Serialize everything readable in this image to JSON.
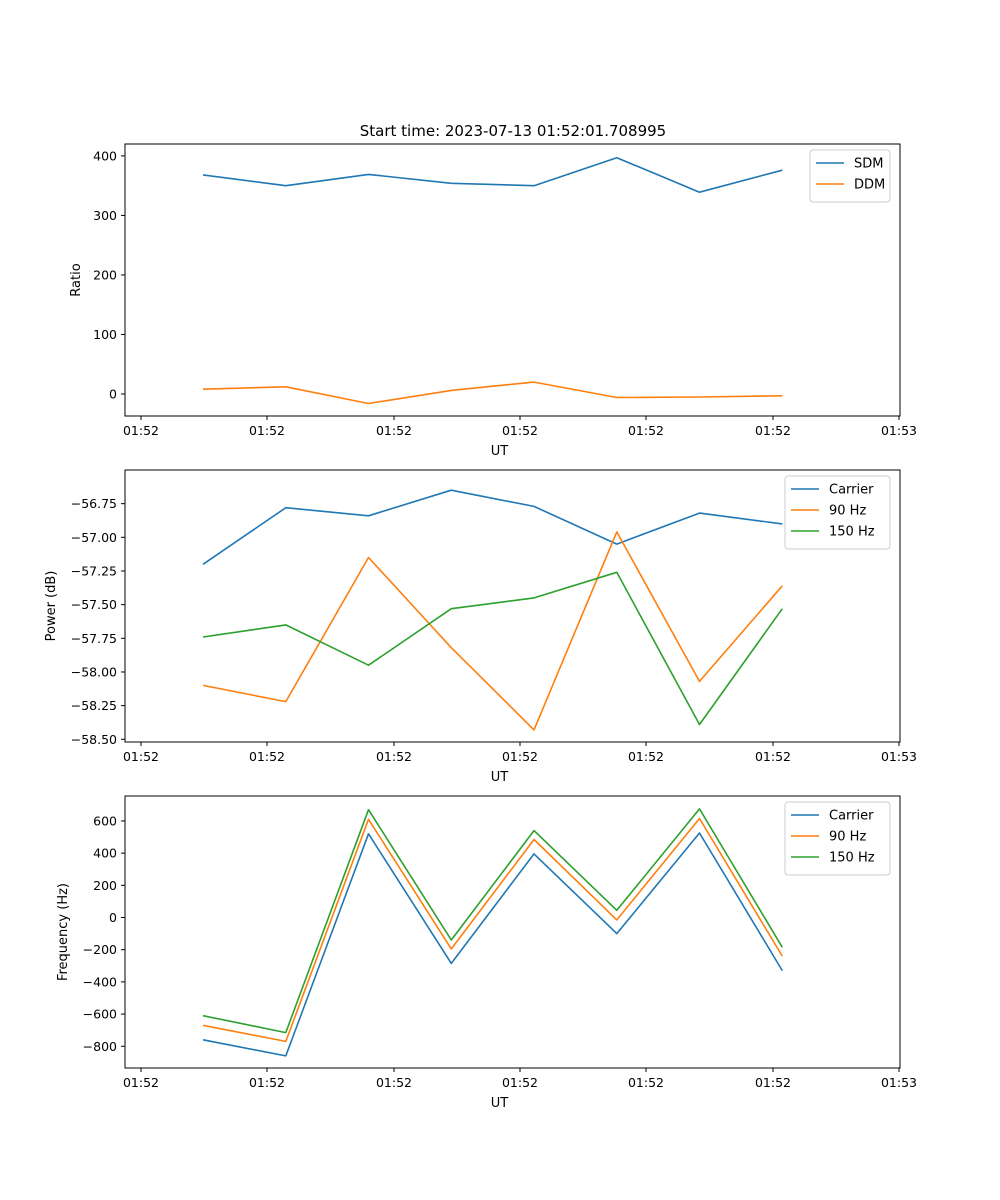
{
  "figure_title": "Start time: 2023-07-13 01:52:01.708995",
  "chart_data": [
    {
      "type": "line",
      "title": "Start time: 2023-07-13 01:52:01.708995",
      "xlabel": "UT",
      "ylabel": "Ratio",
      "x_ticks": [
        "01:52",
        "01:52",
        "01:52",
        "01:52",
        "01:52",
        "01:52",
        "01:53"
      ],
      "x": [
        1,
        2,
        3,
        4,
        5,
        6,
        7,
        8
      ],
      "xlim": [
        0.25,
        9.45
      ],
      "yticks": [
        0,
        100,
        200,
        300,
        400
      ],
      "ylim": [
        -37,
        420
      ],
      "legend": "top-right",
      "series": [
        {
          "name": "SDM",
          "color": "#1f77b4",
          "values": [
            368,
            350,
            369,
            354,
            350,
            397,
            339,
            376
          ]
        },
        {
          "name": "DDM",
          "color": "#ff7f0e",
          "values": [
            8,
            12,
            -16,
            6,
            20,
            -6,
            -5,
            -3
          ]
        }
      ]
    },
    {
      "type": "line",
      "title": "",
      "xlabel": "UT",
      "ylabel": "Power (dB)",
      "x_ticks": [
        "01:52",
        "01:52",
        "01:52",
        "01:52",
        "01:52",
        "01:52",
        "01:53"
      ],
      "x": [
        1,
        2,
        3,
        4,
        5,
        6,
        7,
        8
      ],
      "xlim": [
        0.25,
        9.45
      ],
      "yticks": [
        -58.5,
        -58.25,
        -58.0,
        -57.75,
        -57.5,
        -57.25,
        -57.0,
        -56.75
      ],
      "yticklabels": [
        "−58.50",
        "−58.25",
        "−58.00",
        "−57.75",
        "−57.50",
        "−57.25",
        "−57.00",
        "−56.75"
      ],
      "ylim": [
        -58.52,
        -56.5
      ],
      "legend": "top-right",
      "series": [
        {
          "name": "Carrier",
          "color": "#1f77b4",
          "values": [
            -57.2,
            -56.78,
            -56.84,
            -56.65,
            -56.77,
            -57.05,
            -56.82,
            -56.9
          ]
        },
        {
          "name": "90 Hz",
          "color": "#ff7f0e",
          "values": [
            -58.1,
            -58.22,
            -57.15,
            -57.82,
            -58.43,
            -56.96,
            -58.07,
            -57.36
          ]
        },
        {
          "name": "150 Hz",
          "color": "#2ca02c",
          "values": [
            -57.74,
            -57.65,
            -57.95,
            -57.53,
            -57.45,
            -57.26,
            -58.39,
            -57.53
          ]
        }
      ]
    },
    {
      "type": "line",
      "title": "",
      "xlabel": "UT",
      "ylabel": "Frequency (Hz)",
      "x_ticks": [
        "01:52",
        "01:52",
        "01:52",
        "01:52",
        "01:52",
        "01:52",
        "01:53"
      ],
      "x": [
        1,
        2,
        3,
        4,
        5,
        6,
        7,
        8
      ],
      "xlim": [
        0.25,
        9.45
      ],
      "yticks": [
        -800,
        -600,
        -400,
        -200,
        0,
        200,
        400,
        600
      ],
      "yticklabels": [
        "−800",
        "−600",
        "−400",
        "−200",
        "0",
        "200",
        "400",
        "600"
      ],
      "ylim": [
        -935,
        755
      ],
      "legend": "top-right",
      "series": [
        {
          "name": "Carrier",
          "color": "#1f77b4",
          "values": [
            -760,
            -860,
            520,
            -285,
            395,
            -100,
            525,
            -330
          ]
        },
        {
          "name": "90 Hz",
          "color": "#ff7f0e",
          "values": [
            -670,
            -770,
            610,
            -195,
            485,
            -15,
            615,
            -240
          ]
        },
        {
          "name": "150 Hz",
          "color": "#2ca02c",
          "values": [
            -610,
            -715,
            670,
            -140,
            540,
            45,
            675,
            -185
          ]
        }
      ]
    }
  ]
}
